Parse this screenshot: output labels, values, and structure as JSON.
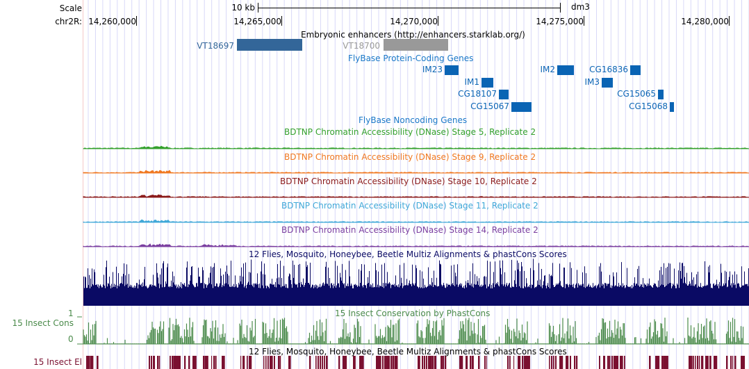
{
  "ruler": {
    "scale_label": "Scale",
    "chrom_label": "chr2R:",
    "scale_bar_label": "10 kb",
    "assembly": "dm3",
    "positions": [
      "14,260,000",
      "14,265,000",
      "14,270,000",
      "14,275,000",
      "14,280,000"
    ]
  },
  "enhancers": {
    "title": "Embryonic enhancers (http://enhancers.starklab.org/)",
    "items": [
      {
        "name": "VT18697",
        "color": "#336699"
      },
      {
        "name": "VT18700",
        "color": "#999999"
      }
    ]
  },
  "protein_genes": {
    "title": "FlyBase Protein-Coding Genes",
    "color": "#0a64b4",
    "items": [
      "IM23",
      "IM1",
      "CG18107",
      "CG15067",
      "IM2",
      "CG16836",
      "IM3",
      "CG15065",
      "CG15068"
    ]
  },
  "noncoding_genes": {
    "title": "FlyBase Noncoding Genes"
  },
  "dnase_tracks": [
    {
      "title": "BDTNP Chromatin Accessibility (DNase) Stage 5, Replicate 2",
      "color": "#33a02c"
    },
    {
      "title": "BDTNP Chromatin Accessibility (DNase) Stage 9, Replicate 2",
      "color": "#f07820"
    },
    {
      "title": "BDTNP Chromatin Accessibility (DNase) Stage 10, Replicate 2",
      "color": "#8b1a1a"
    },
    {
      "title": "BDTNP Chromatin Accessibility (DNase) Stage 11, Replicate 2",
      "color": "#40a8d8"
    },
    {
      "title": "BDTNP Chromatin Accessibility (DNase) Stage 14, Replicate 2",
      "color": "#7b3fa0"
    }
  ],
  "multiz": {
    "title": "12 Flies, Mosquito, Honeybee, Beetle Multiz Alignments & phastCons Scores",
    "color": "#0a0a64"
  },
  "phastcons": {
    "title": "15 Insect Conservation by PhastCons",
    "side_label": "15 Insect Cons",
    "ymax": "1",
    "ymin": "0",
    "color": "#4a8a4a"
  },
  "elements": {
    "title": "12 Flies, Mosquito, Honeybee, Beetle Multiz Alignments & phastCons Scores",
    "side_label": "15 Insect El",
    "color": "#7a1030"
  }
}
